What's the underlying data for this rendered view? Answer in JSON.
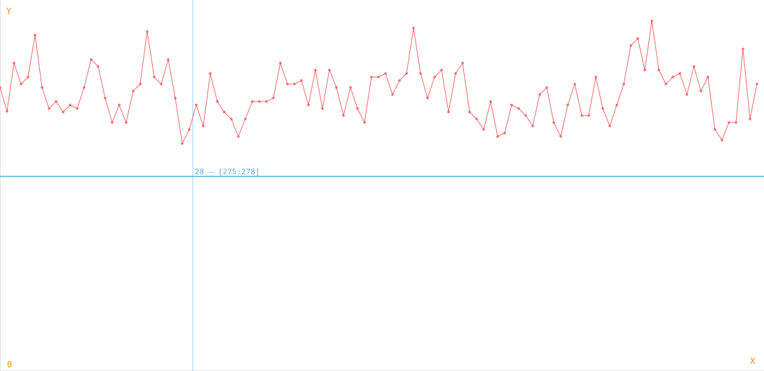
{
  "chart_data": {
    "type": "line",
    "axis": {
      "y_label": "Y",
      "x_label": "X",
      "origin_label": "0"
    },
    "crosshair": {
      "readout": "28 – [275:278]",
      "x_value": 27.5,
      "y_value": 278
    },
    "xlim": [
      0,
      109
    ],
    "ylim": [
      0,
      530
    ],
    "colors": {
      "line": "#f06a6a",
      "crosshair": "#5aaee0",
      "axis_text": "#e8901c"
    },
    "series": [
      {
        "values": [
          405,
          371,
          440,
          410,
          420,
          480,
          405,
          375,
          385,
          370,
          380,
          375,
          405,
          445,
          435,
          390,
          355,
          380,
          355,
          400,
          410,
          485,
          420,
          410,
          445,
          390,
          325,
          345,
          380,
          350,
          425,
          385,
          370,
          360,
          335,
          360,
          385,
          385,
          385,
          390,
          440,
          410,
          410,
          415,
          380,
          430,
          375,
          430,
          405,
          365,
          405,
          375,
          355,
          420,
          420,
          425,
          395,
          415,
          425,
          490,
          425,
          390,
          420,
          430,
          370,
          425,
          440,
          370,
          360,
          345,
          385,
          335,
          340,
          380,
          375,
          365,
          350,
          395,
          405,
          355,
          335,
          380,
          410,
          365,
          365,
          420,
          375,
          350,
          380,
          410,
          465,
          475,
          430,
          500,
          430,
          410,
          420,
          425,
          395,
          435,
          400,
          420,
          345,
          330,
          355,
          355,
          460,
          360,
          410
        ]
      }
    ]
  }
}
